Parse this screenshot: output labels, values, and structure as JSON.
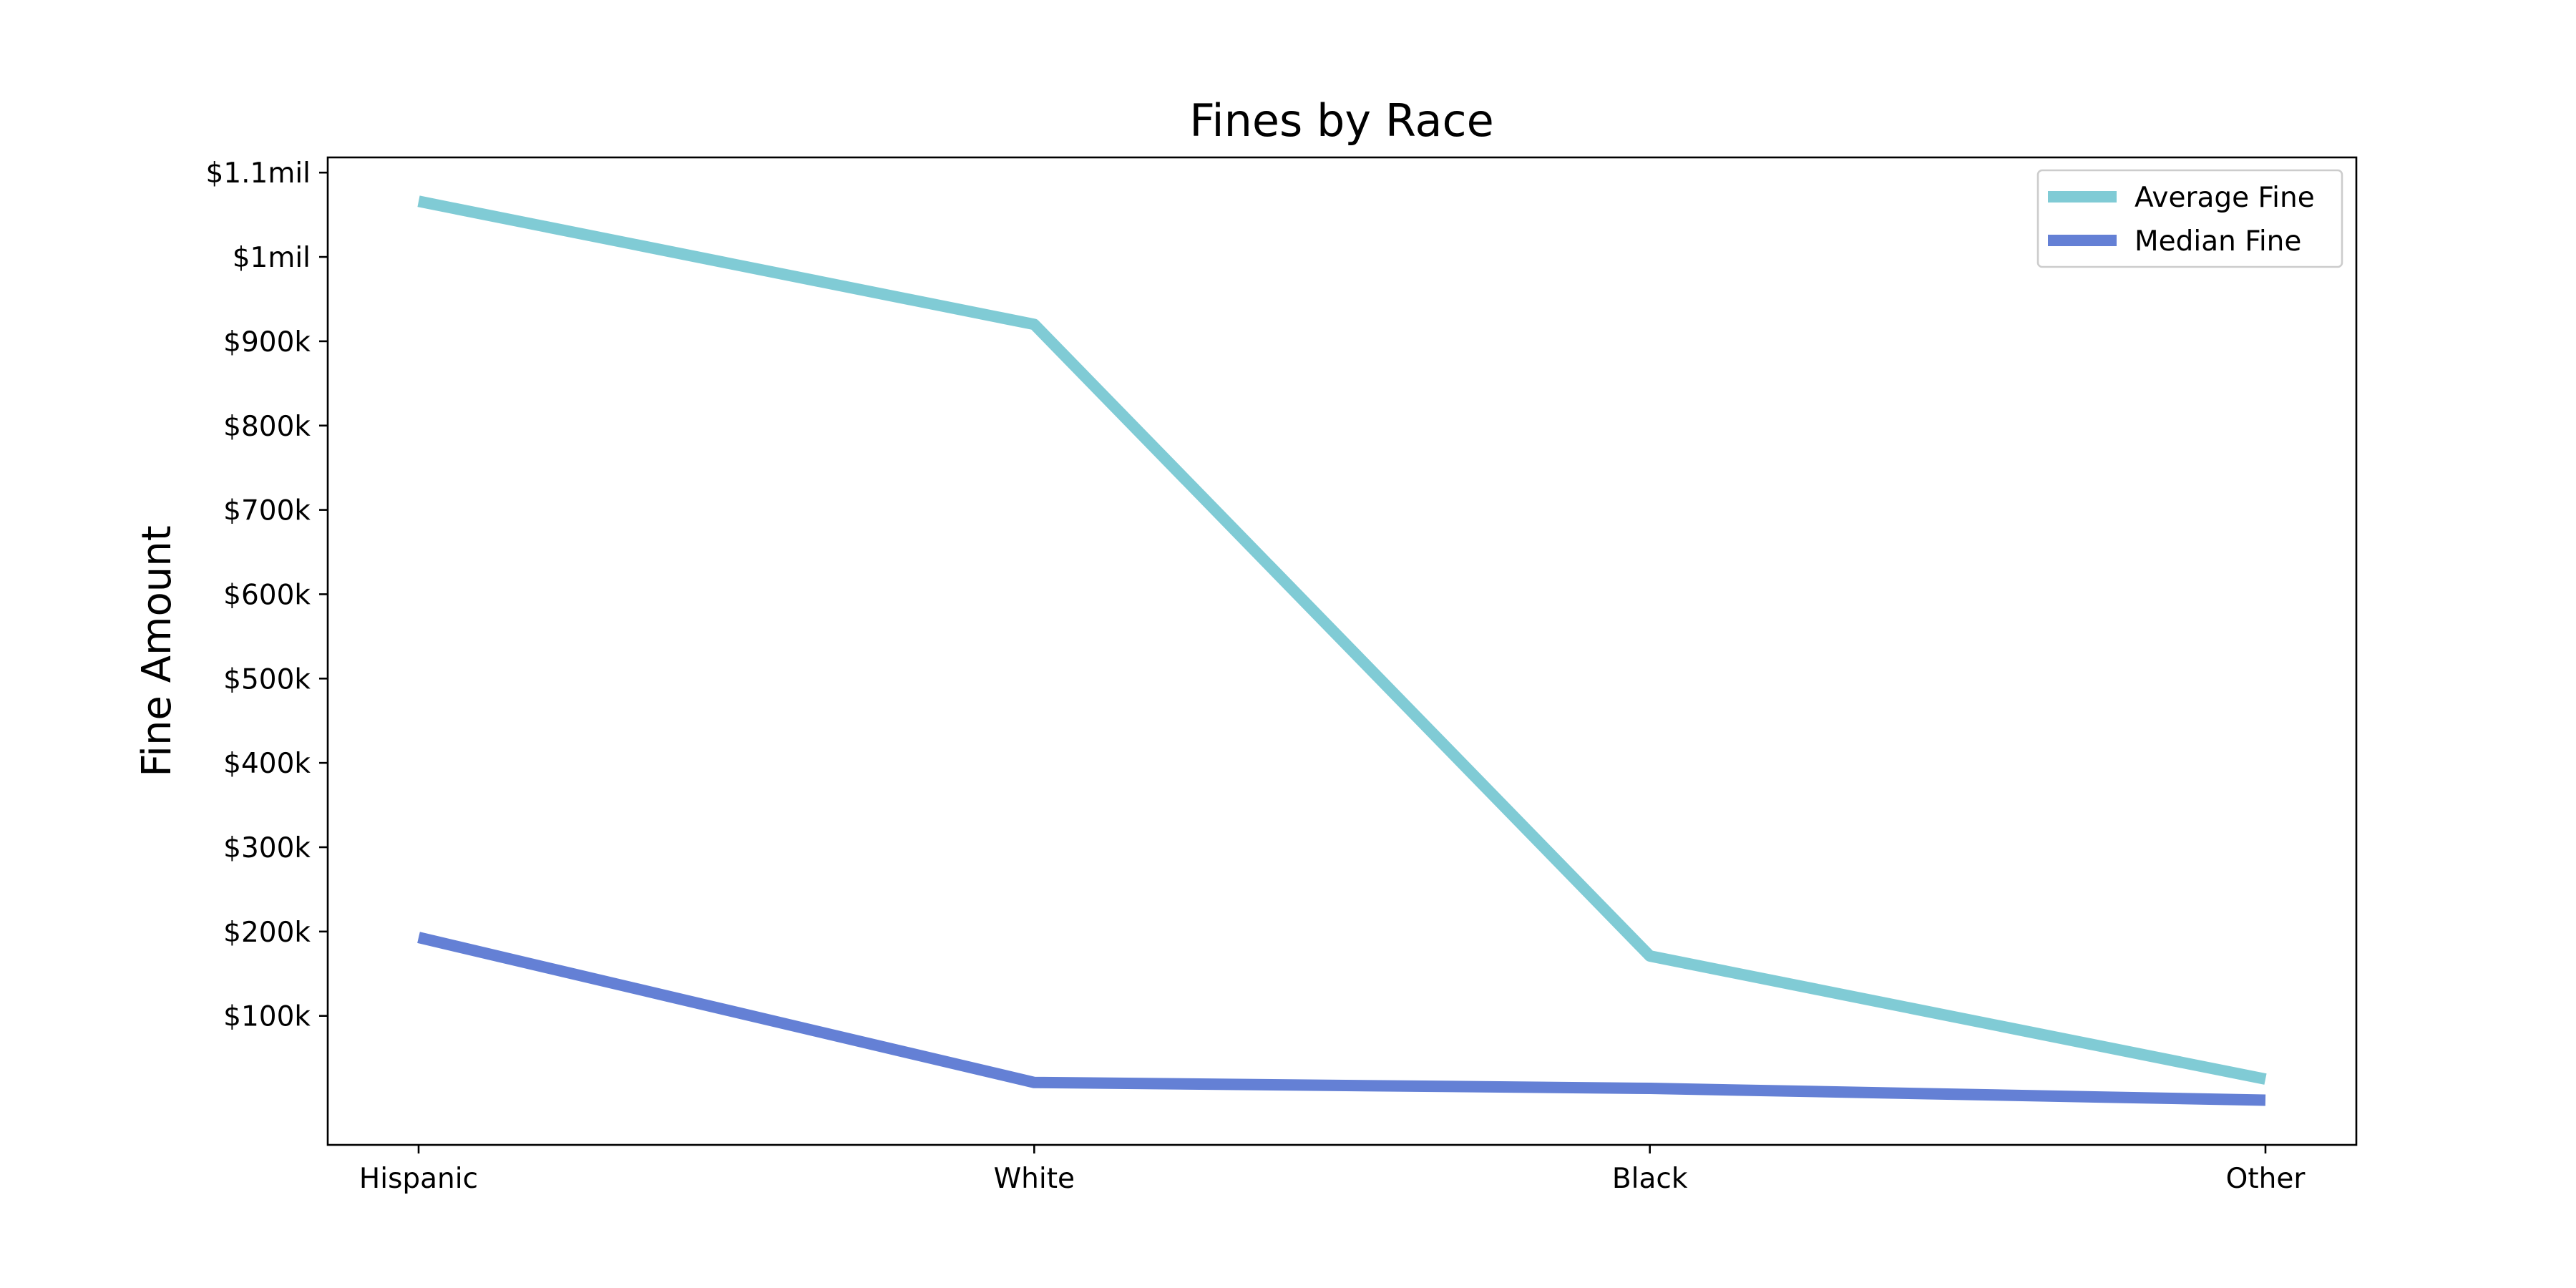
{
  "chart_data": {
    "type": "line",
    "title": "Fines by Race",
    "xlabel": "",
    "ylabel": "Fine Amount",
    "categories": [
      "Hispanic",
      "White",
      "Black",
      "Other"
    ],
    "series": [
      {
        "name": "Average Fine",
        "color": "#80cbd5",
        "values": [
          1066000,
          920000,
          171000,
          25000
        ]
      },
      {
        "name": "Median Fine",
        "color": "#6480d5",
        "values": [
          193000,
          21000,
          14000,
          0
        ]
      }
    ],
    "yticks": [
      {
        "value": 100000,
        "label": "$100k"
      },
      {
        "value": 200000,
        "label": "$200k"
      },
      {
        "value": 300000,
        "label": "$300k"
      },
      {
        "value": 400000,
        "label": "$400k"
      },
      {
        "value": 500000,
        "label": "$500k"
      },
      {
        "value": 600000,
        "label": "$600k"
      },
      {
        "value": 700000,
        "label": "$700k"
      },
      {
        "value": 800000,
        "label": "$800k"
      },
      {
        "value": 900000,
        "label": "$900k"
      },
      {
        "value": 1000000,
        "label": "$1mil"
      },
      {
        "value": 1100000,
        "label": "$1.1mil"
      }
    ],
    "ylim": [
      -53000,
      1118000
    ],
    "grid": false,
    "legend_position": "top-right"
  }
}
